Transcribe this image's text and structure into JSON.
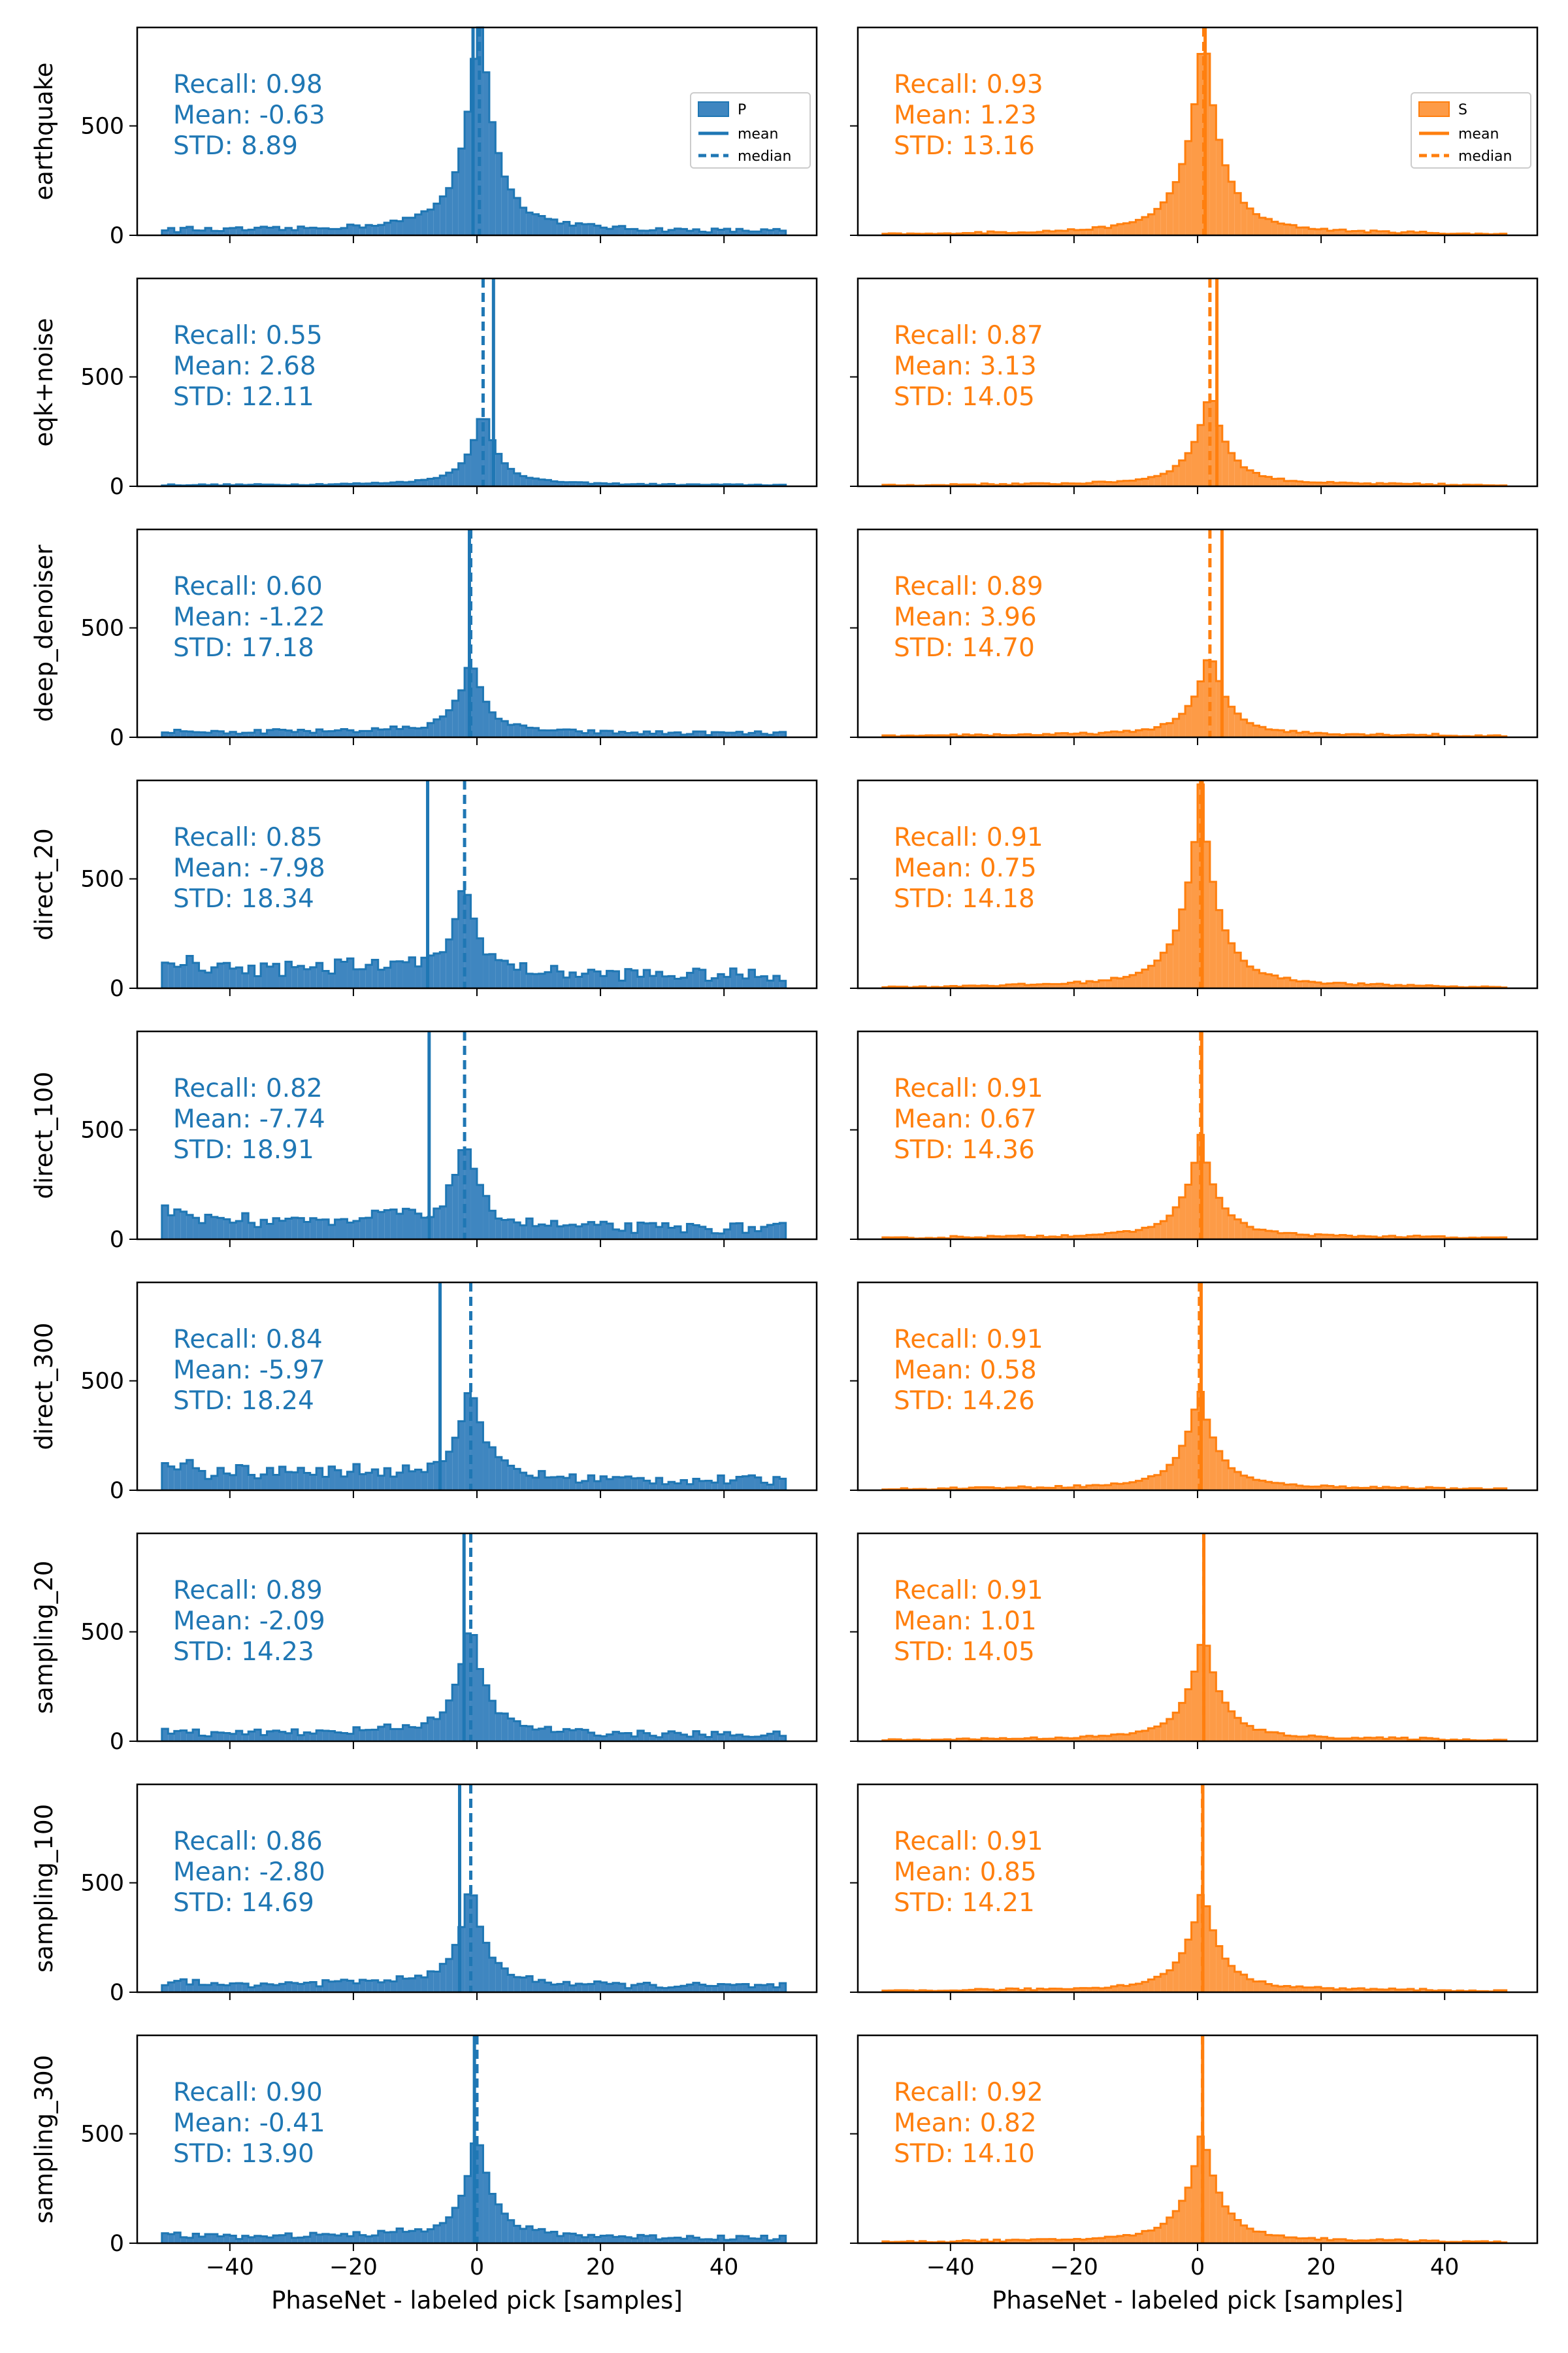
{
  "chart_data": {
    "type": "histogram-grid",
    "xlabel": "PhaseNet - labeled pick [samples]",
    "xlim": [
      -55,
      55
    ],
    "ylim": [
      0,
      950
    ],
    "xticks": [
      -40,
      -20,
      0,
      20,
      40
    ],
    "yticks": [
      0,
      500
    ],
    "colors": {
      "P": "#1f77b4",
      "S": "#ff7f0e",
      "fillP": "#3f86c0",
      "fillS": "#fd9b47"
    },
    "legend": {
      "P": {
        "hist": "P",
        "mean": "mean",
        "median": "median"
      },
      "S": {
        "hist": "S",
        "mean": "mean",
        "median": "median"
      }
    },
    "rows": [
      {
        "label": "earthquake",
        "P": {
          "recall": "Recall: 0.98",
          "mean_text": "Mean: -0.63",
          "std_text": "STD: 8.89",
          "mean": -0.63,
          "median": 0.4,
          "std": 8.89,
          "peak": 950,
          "noise": 20,
          "tail_left": 12
        },
        "S": {
          "recall": "Recall: 0.93",
          "mean_text": "Mean: 1.23",
          "std_text": "STD: 13.16",
          "mean": 1.23,
          "median": 1.0,
          "std": 13.16,
          "peak": 820,
          "noise": 10,
          "tail_left": 0
        }
      },
      {
        "label": "eqk+noise",
        "P": {
          "recall": "Recall: 0.55",
          "mean_text": "Mean: 2.68",
          "std_text": "STD: 12.11",
          "mean": 2.68,
          "median": 1.0,
          "std": 12.11,
          "peak": 310,
          "noise": 6,
          "tail_left": 0
        },
        "S": {
          "recall": "Recall: 0.87",
          "mean_text": "Mean: 3.13",
          "std_text": "STD: 14.05",
          "mean": 3.13,
          "median": 2.0,
          "std": 14.05,
          "peak": 380,
          "noise": 8,
          "tail_left": 0
        }
      },
      {
        "label": "deep_denoiser",
        "P": {
          "recall": "Recall: 0.60",
          "mean_text": "Mean: -1.22",
          "std_text": "STD: 17.18",
          "mean": -1.22,
          "median": -1.0,
          "std": 17.18,
          "peak": 310,
          "noise": 18,
          "tail_left": 20
        },
        "S": {
          "recall": "Recall: 0.89",
          "mean_text": "Mean: 3.96",
          "std_text": "STD: 14.70",
          "mean": 3.96,
          "median": 2.0,
          "std": 14.7,
          "peak": 340,
          "noise": 10,
          "tail_left": 0
        }
      },
      {
        "label": "direct_20",
        "P": {
          "recall": "Recall: 0.85",
          "mean_text": "Mean: -7.98",
          "std_text": "STD: 18.34",
          "mean": -7.98,
          "median": -2.0,
          "std": 18.34,
          "peak": 380,
          "noise": 60,
          "tail_left": 100
        },
        "S": {
          "recall": "Recall: 0.91",
          "mean_text": "Mean: 0.75",
          "std_text": "STD: 14.18",
          "mean": 0.75,
          "median": 0.5,
          "std": 14.18,
          "peak": 780,
          "noise": 10,
          "tail_left": 0
        }
      },
      {
        "label": "direct_100",
        "P": {
          "recall": "Recall: 0.82",
          "mean_text": "Mean: -7.74",
          "std_text": "STD: 18.91",
          "mean": -7.74,
          "median": -2.0,
          "std": 18.91,
          "peak": 380,
          "noise": 50,
          "tail_left": 120
        },
        "S": {
          "recall": "Recall: 0.91",
          "mean_text": "Mean: 0.67",
          "std_text": "STD: 14.36",
          "mean": 0.67,
          "median": 0.5,
          "std": 14.36,
          "peak": 400,
          "noise": 10,
          "tail_left": 0
        }
      },
      {
        "label": "direct_300",
        "P": {
          "recall": "Recall: 0.84",
          "mean_text": "Mean: -5.97",
          "std_text": "STD: 18.24",
          "mean": -5.97,
          "median": -1.0,
          "std": 18.24,
          "peak": 410,
          "noise": 45,
          "tail_left": 100
        },
        "S": {
          "recall": "Recall: 0.91",
          "mean_text": "Mean: 0.58",
          "std_text": "STD: 14.26",
          "mean": 0.58,
          "median": 0.3,
          "std": 14.26,
          "peak": 400,
          "noise": 10,
          "tail_left": 0
        }
      },
      {
        "label": "sampling_20",
        "P": {
          "recall": "Recall: 0.89",
          "mean_text": "Mean: -2.09",
          "std_text": "STD: 14.23",
          "mean": -2.09,
          "median": -1.0,
          "std": 14.23,
          "peak": 470,
          "noise": 30,
          "tail_left": 25
        },
        "S": {
          "recall": "Recall: 0.91",
          "mean_text": "Mean: 1.01",
          "std_text": "STD: 14.05",
          "mean": 1.01,
          "median": 1.0,
          "std": 14.05,
          "peak": 430,
          "noise": 10,
          "tail_left": 0
        }
      },
      {
        "label": "sampling_100",
        "P": {
          "recall": "Recall: 0.86",
          "mean_text": "Mean: -2.80",
          "std_text": "STD: 14.69",
          "mean": -2.8,
          "median": -1.0,
          "std": 14.69,
          "peak": 420,
          "noise": 28,
          "tail_left": 25
        },
        "S": {
          "recall": "Recall: 0.91",
          "mean_text": "Mean: 0.85",
          "std_text": "STD: 14.21",
          "mean": 0.85,
          "median": 0.8,
          "std": 14.21,
          "peak": 410,
          "noise": 10,
          "tail_left": 0
        }
      },
      {
        "label": "sampling_300",
        "P": {
          "recall": "Recall: 0.90",
          "mean_text": "Mean: -0.41",
          "std_text": "STD: 13.90",
          "mean": -0.41,
          "median": 0.0,
          "std": 13.9,
          "peak": 440,
          "noise": 25,
          "tail_left": 20
        },
        "S": {
          "recall": "Recall: 0.92",
          "mean_text": "Mean: 0.82",
          "std_text": "STD: 14.10",
          "mean": 0.82,
          "median": 0.8,
          "std": 14.1,
          "peak": 450,
          "noise": 10,
          "tail_left": 0
        }
      }
    ]
  }
}
